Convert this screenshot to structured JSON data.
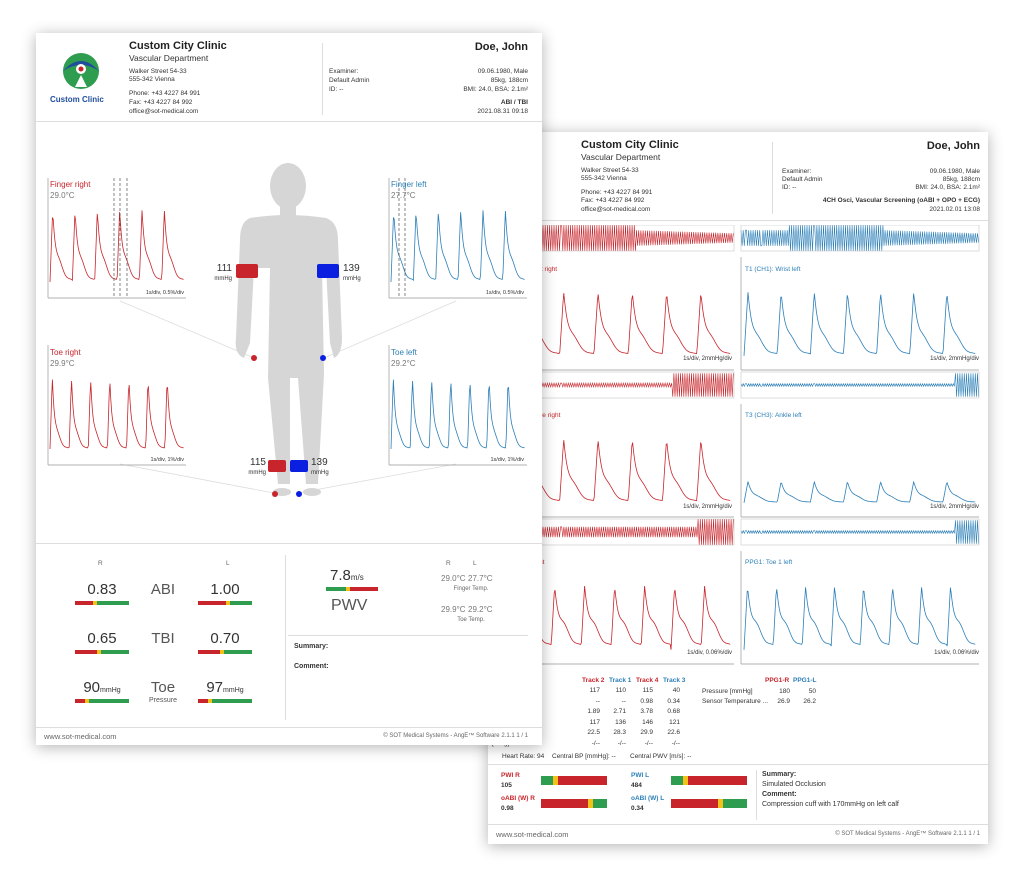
{
  "colors": {
    "red": "#c8242b",
    "blue": "#2c7fb8",
    "green": "#2e9d4f",
    "yellow": "#f2c21b"
  },
  "p1": {
    "logo_text": "Custom Clinic",
    "clinic": "Custom City Clinic",
    "dept": "Vascular Department",
    "street": "Walker Street 54-33",
    "city": "555-342 Vienna",
    "phone": "Phone: +43 4227 84 991",
    "fax": "Fax: +43 4227 84 992",
    "email": "office@sot-medical.com",
    "patient": "Doe, John",
    "examiner_label": "Examiner:",
    "examiner": "Default Admin",
    "id_label": "ID: --",
    "dob": "09.06.1980, Male",
    "weight": "85kg, 188cm",
    "bmi": "BMI: 24.0, BSA: 2.1m²",
    "exam": "ABI / TBI",
    "date": "2021.08.31 09:18",
    "panels": {
      "finger_right": {
        "label": "Finger right",
        "temp": "29.0°C",
        "scale": "1s/div, 0.5%/div"
      },
      "finger_left": {
        "label": "Finger left",
        "temp": "27.7°C",
        "scale": "1s/div, 0.5%/div"
      },
      "toe_right": {
        "label": "Toe right",
        "temp": "29.9°C",
        "scale": "1s/div, 1%/div"
      },
      "toe_left": {
        "label": "Toe left",
        "temp": "29.2°C",
        "scale": "1s/div, 1%/div"
      }
    },
    "arm_right": "111",
    "arm_left": "139",
    "ankle_right": "115",
    "ankle_left": "139",
    "unit": "mmHg",
    "col_r": "R",
    "col_l": "L",
    "abi_label": "ABI",
    "abi_r": "0.83",
    "abi_l": "1.00",
    "tbi_label": "TBI",
    "tbi_r": "0.65",
    "tbi_l": "0.70",
    "toe_label": "Toe",
    "toe_sub": "Pressure",
    "toe_r": "90",
    "toe_l": "97",
    "pwv_value": "7.8",
    "pwv_unit": "m/s",
    "pwv_label": "PWV",
    "temp_r": "R",
    "temp_l": "L",
    "finger_temp_r": "29.0°C",
    "finger_temp_l": "27.7°C",
    "finger_temp_label": "Finger Temp.",
    "toe_temp_r": "29.9°C",
    "toe_temp_l": "29.2°C",
    "toe_temp_label": "Toe Temp.",
    "summary_label": "Summary:",
    "comment_label": "Comment:",
    "footer_left": "www.sot-medical.com",
    "footer_right": "© SOT Medical Systems - AngE™ Software 2.1.1    1 / 1"
  },
  "p2": {
    "clinic": "Custom City Clinic",
    "dept": "Vascular Department",
    "street": "Walker Street 54-33",
    "city": "555-342 Vienna",
    "phone": "Phone: +43 4227 84 991",
    "fax": "Fax: +43 4227 84 992",
    "email": "office@sot-medical.com",
    "patient": "Doe, John",
    "examiner_label": "Examiner:",
    "examiner": "Default Admin",
    "id_label": "ID: --",
    "dob": "09.06.1980, Male",
    "weight": "85kg, 188cm",
    "bmi": "BMI: 24.0, BSA: 2.1m²",
    "exam": "4CH Osci, Vascular Screening (oABI + OPO + ECG)",
    "date": "2021.02.01 13:08",
    "wrist_right": "rist right",
    "wrist_left": "T1 (CH1): Wrist left",
    "ankle_right": "nkle right",
    "ankle_left": "T3 (CH3): Ankle left",
    "toe_right": "ight",
    "toe_left": "PPG1: Toe 1 left",
    "scale_2mm": "1s/div, 2mmHg/div",
    "scale_ppg": "1s/div, 0.06%/div",
    "tracks": [
      "Track 2",
      "Track 1",
      "Track 4",
      "Track 3"
    ],
    "rows": [
      {
        "label": "ndex [mmHg]",
        "v": [
          "117",
          "110",
          "115",
          "40"
        ]
      },
      {
        "label": "(Ref. Track 2)",
        "v": [
          "--",
          "--",
          "0.98",
          "0.34"
        ]
      },
      {
        "label": "plitude [mmHg]",
        "v": [
          "1.89",
          "2.71",
          "3.78",
          "0.68"
        ]
      },
      {
        "label": "",
        "v": [
          "117",
          "136",
          "146",
          "121"
        ]
      },
      {
        "label": "",
        "v": [
          "22.5",
          "28.3",
          "29.9",
          "22.6"
        ]
      },
      {
        "label": "[mHg]",
        "v": [
          "-/--",
          "-/--",
          "-/--",
          "-/--"
        ]
      }
    ],
    "ppg_r": "PPG1-R",
    "ppg_l": "PPG1-L",
    "ppg_rows": [
      {
        "label": "Pressure [mmHg]",
        "r": "180",
        "l": "50"
      },
      {
        "label": "Sensor Temperature ...",
        "r": "26.9",
        "l": "26.2"
      }
    ],
    "heart_rate": "Heart Rate:  94",
    "central_bp": "Central BP [mmHg]:  --",
    "central_pwv": "Central PWV [m/s]:  --",
    "pwi_r_label": "PWI R",
    "pwi_r": "105",
    "pwi_l_label": "PWI L",
    "pwi_l": "484",
    "oabi_r_label": "oABI (W) R",
    "oabi_r": "0.98",
    "oabi_l_label": "oABI (W) L",
    "oabi_l": "0.34",
    "summary_label": "Summary:",
    "summary": "Simulated Occlusion",
    "comment_label": "Comment:",
    "comment": "Compression cuff with 170mmHg on left calf",
    "footer_left": "www.sot-medical.com",
    "footer_right": "© SOT Medical Systems - AngE™ Software 2.1.1    1 / 1"
  }
}
